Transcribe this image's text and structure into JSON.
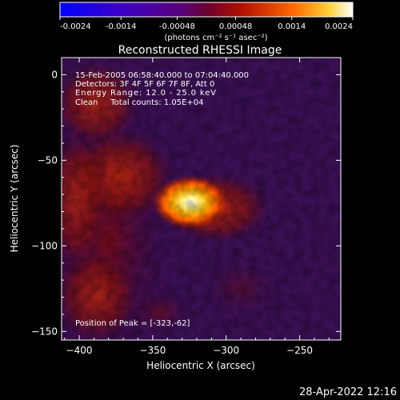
{
  "colorbar": {
    "ticks": [
      "-0.0024",
      "-0.0014",
      "-0.00048",
      "0.00048",
      "0.0014",
      "0.0024"
    ],
    "values": [
      -0.0024,
      -0.0014,
      -0.00048,
      0.00048,
      0.0014,
      0.0024
    ],
    "range": [
      -0.0024,
      0.0024
    ],
    "unit_label": "(photons cm⁻² s⁻¹ asec⁻²)"
  },
  "colors": {
    "background": "#000000",
    "text": "#ffffff",
    "colormap": [
      "#0000ff",
      "#3300cc",
      "#4b0082",
      "#8b0000",
      "#ff4500",
      "#ffd700",
      "#ffffff"
    ]
  },
  "chart_data": {
    "type": "heatmap",
    "title": "Reconstructed RHESSI Image",
    "xlabel": "Heliocentric X (arcsec)",
    "ylabel": "Heliocentric Y (arcsec)",
    "xlim": [
      -412,
      -222
    ],
    "ylim": [
      -155,
      10
    ],
    "xticks": [
      -400,
      -350,
      -300,
      -250
    ],
    "xtick_labels": [
      "−400",
      "−350",
      "−300",
      "−250"
    ],
    "yticks": [
      0,
      -50,
      -100,
      -150
    ],
    "ytick_labels": [
      "0",
      "−50",
      "−100",
      "−150"
    ],
    "peak": {
      "x": -323,
      "y": -62
    },
    "annotations": [
      "15-Feb-2005 06:58:40.000 to 07:04:40.000",
      "Detectors: 3F 4F 5F 6F 7F 8F, Att 0",
      "Energy Range: 12.0 - 25.0 keV",
      "Clean     Total counts: 1.05E+04"
    ],
    "peak_label": "Position of Peak = [-323,-62]",
    "grid": false
  },
  "footer_date": "28-Apr-2022 12:16"
}
